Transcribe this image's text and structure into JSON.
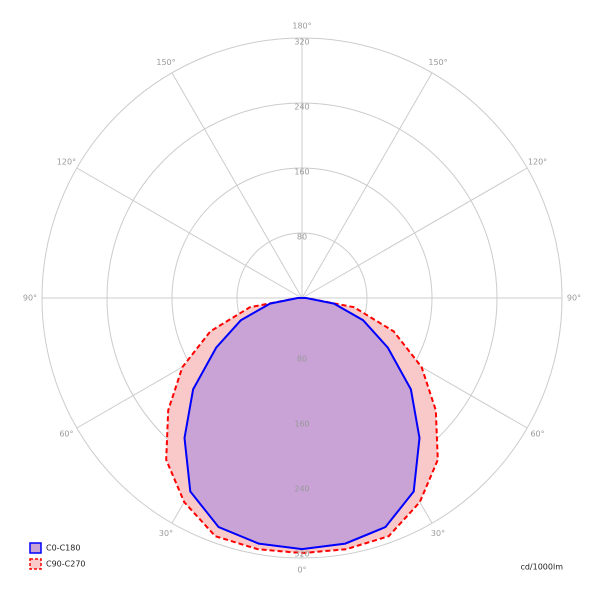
{
  "chart_data": {
    "type": "polar",
    "unit": "cd/1000lm",
    "rlim": [
      0,
      320
    ],
    "rticks": [
      80,
      160,
      240,
      320
    ],
    "angle_ticks": [
      {
        "value": 0,
        "label": "0°"
      },
      {
        "value": 30,
        "label": "30°"
      },
      {
        "value": -30,
        "label": "30°"
      },
      {
        "value": 60,
        "label": "60°"
      },
      {
        "value": -60,
        "label": "60°"
      },
      {
        "value": 90,
        "label": "90°"
      },
      {
        "value": -90,
        "label": "90°"
      },
      {
        "value": 120,
        "label": "120°"
      },
      {
        "value": -120,
        "label": "120°"
      },
      {
        "value": 150,
        "label": "150°"
      },
      {
        "value": -150,
        "label": "150°"
      },
      {
        "value": 180,
        "label": "180°"
      }
    ],
    "angles": [
      -90,
      -80,
      -70,
      -60,
      -50,
      -40,
      -30,
      -20,
      -10,
      0,
      10,
      20,
      30,
      40,
      50,
      60,
      70,
      80,
      90
    ],
    "series": [
      {
        "name": "C90-C270",
        "color": "#ff0000",
        "fill": "#f9c9c9",
        "dashed": true,
        "values": [
          5,
          65,
          120,
          170,
          215,
          260,
          290,
          312,
          314,
          314,
          314,
          312,
          290,
          260,
          215,
          170,
          120,
          65,
          5
        ]
      },
      {
        "name": "C0-C180",
        "color": "#0000ff",
        "fill": "#c9a3d6",
        "dashed": false,
        "values": [
          5,
          40,
          80,
          122,
          175,
          225,
          275,
          300,
          307,
          309,
          307,
          300,
          275,
          225,
          175,
          122,
          80,
          40,
          5
        ]
      }
    ]
  }
}
